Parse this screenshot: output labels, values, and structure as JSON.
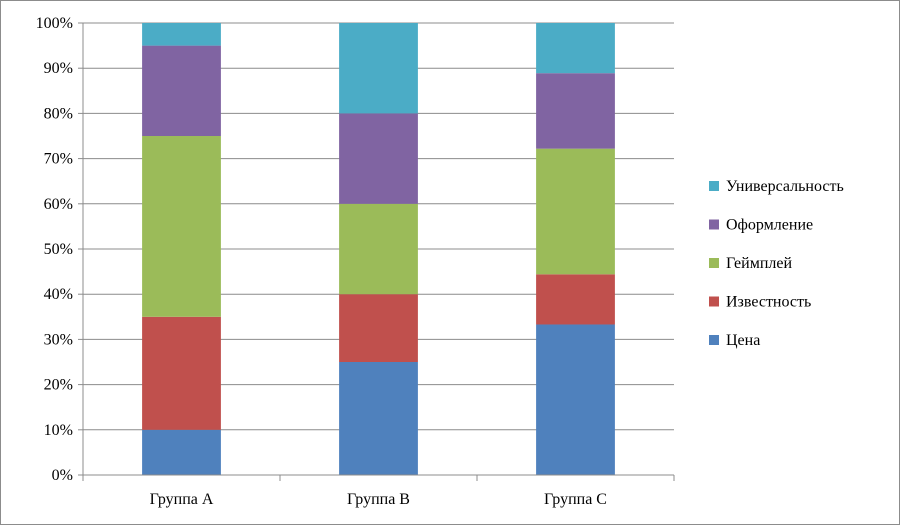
{
  "chart_data": {
    "type": "bar",
    "stacked": true,
    "percent_stacked": true,
    "categories": [
      "Группа А",
      "Группа В",
      "Группа С"
    ],
    "series": [
      {
        "name": "Цена",
        "values": [
          10,
          25,
          33.3
        ],
        "color": "#4F81BD"
      },
      {
        "name": "Известность",
        "values": [
          25,
          15,
          11.1
        ],
        "color": "#C0504D"
      },
      {
        "name": "Геймплей",
        "values": [
          40,
          20,
          27.8
        ],
        "color": "#9BBB59"
      },
      {
        "name": "Оформление",
        "values": [
          20,
          20,
          16.7
        ],
        "color": "#8064A2"
      },
      {
        "name": "Универсальность",
        "values": [
          5,
          20,
          11.1
        ],
        "color": "#4BACC6"
      }
    ],
    "yticks": [
      "0%",
      "10%",
      "20%",
      "30%",
      "40%",
      "50%",
      "60%",
      "70%",
      "80%",
      "90%",
      "100%"
    ],
    "ylim": [
      0,
      100
    ],
    "grid": true,
    "legend_position": "right",
    "title": "",
    "xlabel": "",
    "ylabel": ""
  }
}
